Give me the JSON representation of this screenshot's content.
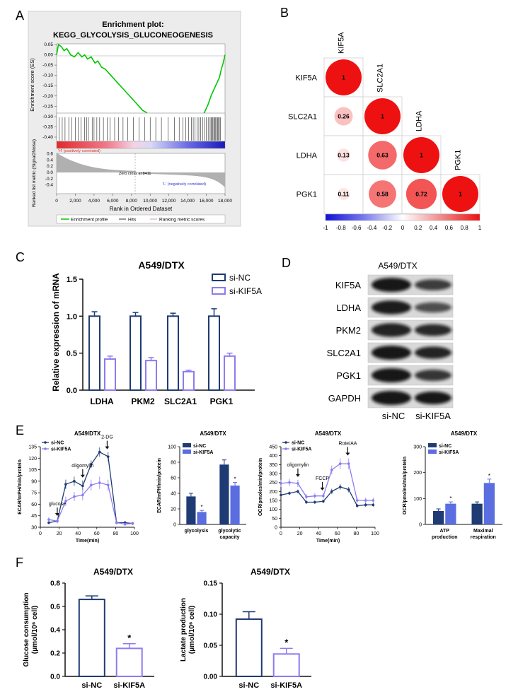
{
  "colors": {
    "navy": "#1f3b73",
    "lavender": "#8c7cf0",
    "blue_bar": "#5a6ee0",
    "green": "#00c800",
    "gray_area": "#b0b0b0",
    "red": "#ee1111"
  },
  "panel_labels": {
    "A": "A",
    "B": "B",
    "C": "C",
    "D": "D",
    "E": "E",
    "F": "F"
  },
  "chart_data": [
    {
      "id": "A",
      "type": "line",
      "title_line1": "Enrichment plot:",
      "title_line2": "KEGG_GLYCOLYSIS_GLUCONEOGENESIS",
      "ylabel_es": "Enrichment score (ES)",
      "ylabel_rank": "Ranked list metric (Signal2Noise)",
      "xlabel": "Rank in Ordered Dataset",
      "es_yticks": [
        "0.05",
        "0.00",
        "-0.05",
        "-0.10",
        "-0.15",
        "-0.20",
        "-0.25",
        "-0.30",
        "-0.35",
        "-0.40"
      ],
      "rank_yticks": [
        "0.6",
        "0.4",
        "0.2",
        "0.0",
        "-0.2",
        "-0.4"
      ],
      "xticks": [
        "0",
        "2,000",
        "4,000",
        "6,000",
        "8,000",
        "10,000",
        "12,000",
        "14,000",
        "16,000",
        "18,000"
      ],
      "pos_label": "'H' (positively correlated)",
      "neg_label": "'L' (negatively correlated)",
      "zero_cross": "Zero cross at 8411",
      "legend": [
        "Enrichment profile",
        "Hits",
        "Ranking metric scores"
      ],
      "es_curve": {
        "x": [
          0,
          200,
          500,
          800,
          1100,
          1500,
          1900,
          2300,
          2700,
          3000,
          3300,
          3700,
          4100,
          4400,
          4800,
          5200,
          5600,
          6000,
          6400,
          6800,
          7200,
          7600,
          8000,
          8400,
          8800,
          9200,
          9600,
          10000,
          10400,
          10800,
          11200,
          11600,
          12000,
          12400,
          12800,
          13200,
          13500,
          13800,
          14200,
          14600,
          15000,
          15400,
          15800,
          16200,
          16500,
          16800,
          17100,
          17400,
          17600,
          17800,
          18000
        ],
        "y": [
          0.0,
          0.05,
          0.04,
          0.02,
          0.03,
          0.0,
          -0.01,
          0.01,
          -0.01,
          0.0,
          -0.02,
          -0.01,
          -0.04,
          -0.03,
          -0.06,
          -0.07,
          -0.09,
          -0.11,
          -0.13,
          -0.15,
          -0.17,
          -0.19,
          -0.21,
          -0.23,
          -0.25,
          -0.27,
          -0.28,
          -0.3,
          -0.31,
          -0.33,
          -0.34,
          -0.35,
          -0.36,
          -0.37,
          -0.36,
          -0.37,
          -0.35,
          -0.36,
          -0.33,
          -0.34,
          -0.32,
          -0.31,
          -0.28,
          -0.24,
          -0.2,
          -0.17,
          -0.14,
          -0.11,
          -0.07,
          -0.04,
          0.0
        ]
      },
      "hits": [
        250,
        600,
        900,
        1300,
        1600,
        2000,
        2300,
        2600,
        3000,
        3200,
        3400,
        3800,
        4000,
        4300,
        4600,
        5000,
        5400,
        5700,
        6200,
        6600,
        7100,
        7600,
        8200,
        8800,
        9400,
        10000,
        10600,
        11200,
        11900,
        12600,
        13100,
        13500,
        13800,
        14100,
        14400,
        14600,
        14800,
        15000,
        15200,
        15400,
        15600,
        15800,
        16000,
        16200,
        16400,
        16500,
        16600,
        16700,
        16800,
        16900,
        17000,
        17100,
        17200,
        17300,
        17400,
        17500
      ]
    },
    {
      "id": "B",
      "type": "heatmap",
      "genes": [
        "KIF5A",
        "SLC2A1",
        "LDHA",
        "PGK1"
      ],
      "matrix": [
        [
          1,
          null,
          null,
          null
        ],
        [
          0.26,
          1,
          null,
          null
        ],
        [
          0.13,
          0.63,
          1,
          null
        ],
        [
          0.11,
          0.58,
          0.72,
          1
        ]
      ],
      "value_labels": [
        [
          "1"
        ],
        [
          "0.26",
          "1"
        ],
        [
          "0.13",
          "0.63",
          "1"
        ],
        [
          "0.11",
          "0.58",
          "0.72",
          "1"
        ]
      ],
      "colorbar_ticks": [
        "-1",
        "-0.8",
        "-0.6",
        "-0.4",
        "-0.2",
        "0",
        "0.2",
        "0.4",
        "0.6",
        "0.8",
        "1"
      ]
    },
    {
      "id": "C",
      "type": "bar",
      "title": "A549/DTX",
      "ylabel": "Relative expression of mRNA",
      "categories": [
        "LDHA",
        "PKM2",
        "SLC2A1",
        "PGK1"
      ],
      "yticks": [
        "0.0",
        "0.5",
        "1.0",
        "1.5"
      ],
      "ylim": [
        0,
        1.5
      ],
      "series": [
        {
          "name": "si-NC",
          "values": [
            1.0,
            1.0,
            1.0,
            1.0
          ],
          "err": [
            0.06,
            0.05,
            0.04,
            0.1
          ]
        },
        {
          "name": "si-KIF5A",
          "values": [
            0.42,
            0.4,
            0.25,
            0.46
          ],
          "err": [
            0.04,
            0.04,
            0.02,
            0.04
          ]
        }
      ]
    },
    {
      "id": "E1",
      "type": "line",
      "title": "A549/DTX",
      "ylabel": "ECAR/mPH/min/protein",
      "xlabel": "Time(min)",
      "xticks": [
        "0",
        "20",
        "40",
        "60",
        "80",
        "100"
      ],
      "yticks": [
        "30",
        "45",
        "60",
        "75",
        "90",
        "105",
        "120",
        "135"
      ],
      "xlim": [
        0,
        100
      ],
      "ylim": [
        30,
        135
      ],
      "annotations": [
        "glucose",
        "oligomylin",
        "2-DG"
      ],
      "annotation_x": [
        18,
        45,
        71
      ],
      "series": [
        {
          "name": "si-NC",
          "x": [
            9,
            18,
            27,
            36,
            45,
            54,
            63,
            72,
            81,
            90,
            98
          ],
          "y": [
            36,
            38,
            86,
            90,
            84,
            112,
            128,
            122,
            36,
            36,
            35
          ],
          "err": [
            2,
            2,
            6,
            6,
            7,
            5,
            6,
            6,
            2,
            2,
            2
          ]
        },
        {
          "name": "si-KIF5A",
          "x": [
            9,
            18,
            27,
            36,
            45,
            54,
            63,
            72,
            81,
            90,
            98
          ],
          "y": [
            40,
            38,
            64,
            70,
            72,
            85,
            88,
            85,
            36,
            34,
            35
          ],
          "err": [
            3,
            3,
            6,
            6,
            7,
            7,
            8,
            7,
            2,
            2,
            2
          ]
        }
      ]
    },
    {
      "id": "E2",
      "type": "bar",
      "title": "A549/DTX",
      "ylabel": "ECAR/mPH/min/protein",
      "categories": [
        "glycolysis",
        "glycolytic capacity"
      ],
      "yticks": [
        "0",
        "20",
        "40",
        "60",
        "80",
        "100"
      ],
      "ylim": [
        0,
        100
      ],
      "series": [
        {
          "name": "si-NC",
          "values": [
            36,
            77
          ],
          "err": [
            4,
            6
          ]
        },
        {
          "name": "si-KIF5A",
          "values": [
            16,
            50
          ],
          "err": [
            2,
            4
          ]
        }
      ],
      "sig_marks": [
        "*",
        "*"
      ]
    },
    {
      "id": "E3",
      "type": "line",
      "title": "A549/DTX",
      "ylabel": "OCR/pmoles/min/protein",
      "xlabel": "Time(min)",
      "xticks": [
        "0",
        "20",
        "40",
        "60",
        "80",
        "100"
      ],
      "yticks": [
        "0",
        "50",
        "100",
        "150",
        "200",
        "250",
        "300",
        "350",
        "400",
        "450"
      ],
      "xlim": [
        0,
        100
      ],
      "ylim": [
        0,
        450
      ],
      "annotations": [
        "oligomylin",
        "FCCP",
        "Rote/AA"
      ],
      "annotation_x": [
        18,
        44,
        71
      ],
      "series": [
        {
          "name": "si-NC",
          "x": [
            0,
            9,
            18,
            27,
            36,
            45,
            54,
            63,
            72,
            81,
            90,
            98
          ],
          "y": [
            180,
            190,
            200,
            140,
            140,
            145,
            200,
            225,
            210,
            120,
            125,
            125
          ],
          "err": [
            10,
            10,
            10,
            10,
            10,
            10,
            15,
            15,
            15,
            10,
            10,
            10
          ]
        },
        {
          "name": "si-KIF5A",
          "x": [
            0,
            9,
            18,
            27,
            36,
            45,
            54,
            63,
            72,
            81,
            90,
            98
          ],
          "y": [
            245,
            250,
            245,
            170,
            175,
            175,
            320,
            355,
            355,
            150,
            150,
            150
          ],
          "err": [
            20,
            20,
            20,
            15,
            15,
            15,
            25,
            30,
            30,
            15,
            15,
            15
          ]
        }
      ]
    },
    {
      "id": "E4",
      "type": "bar",
      "title": "A549/DTX",
      "ylabel": "OCR/pmoles/min/protein",
      "categories": [
        "ATP production",
        "Maximal respiration"
      ],
      "yticks": [
        "0",
        "100",
        "200",
        "300"
      ],
      "ylim": [
        0,
        300
      ],
      "series": [
        {
          "name": "si-NC",
          "values": [
            52,
            80
          ],
          "err": [
            8,
            7
          ]
        },
        {
          "name": "si-KIF5A",
          "values": [
            80,
            160
          ],
          "err": [
            7,
            15
          ]
        }
      ],
      "sig_marks": [
        "*",
        "*"
      ]
    },
    {
      "id": "F1",
      "type": "bar",
      "title": "A549/DTX",
      "ylabel_line1": "Glucose consumption",
      "ylabel_line2": "(μmol/10⁶ cell)",
      "categories": [
        "si-NC",
        "si-KIF5A"
      ],
      "yticks": [
        "0.0",
        "0.2",
        "0.4",
        "0.6",
        "0.8"
      ],
      "ylim": [
        0,
        0.8
      ],
      "values": [
        0.66,
        0.24
      ],
      "err": [
        0.03,
        0.04
      ],
      "sig_mark": "*"
    },
    {
      "id": "F2",
      "type": "bar",
      "title": "A549/DTX",
      "ylabel_line1": "Lactate production",
      "ylabel_line2": "(μmol/10⁶ cell)",
      "categories": [
        "si-NC",
        "si-KIF5A"
      ],
      "yticks": [
        "0.00",
        "0.05",
        "0.10",
        "0.15"
      ],
      "ylim": [
        0,
        0.15
      ],
      "values": [
        0.092,
        0.036
      ],
      "err": [
        0.012,
        0.009
      ],
      "sig_mark": "*"
    }
  ],
  "western": {
    "title": "A549/DTX",
    "proteins": [
      "KIF5A",
      "LDHA",
      "PKM2",
      "SLC2A1",
      "PGK1",
      "GAPDH"
    ],
    "lanes": [
      "si-NC",
      "si-KIF5A"
    ],
    "intensity_nc": [
      1.0,
      0.95,
      0.9,
      1.0,
      1.0,
      1.0
    ],
    "intensity_kif5a": [
      0.7,
      0.55,
      0.85,
      0.9,
      0.75,
      1.0
    ]
  }
}
